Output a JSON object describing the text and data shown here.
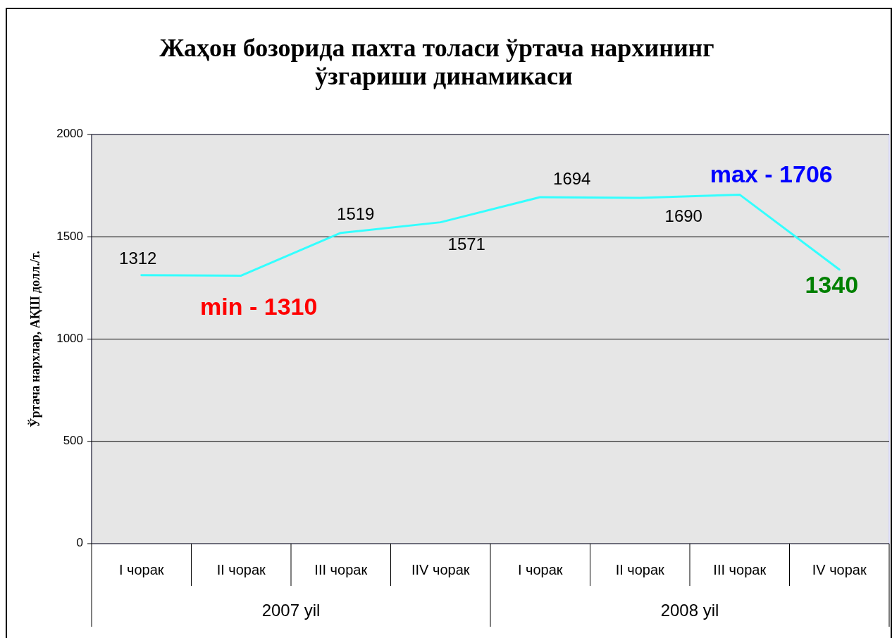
{
  "chart_data": {
    "type": "line",
    "title": "Жаҳон бозорида пахта толаси ўртача нархининг ўзгариши динамикаси",
    "ylabel": "Ўртача нархлар, АҚШ долл./т.",
    "categories": [
      "I чорак",
      "II чорак",
      "III чорак",
      "IIV чорак",
      "I чорак",
      "II чорак",
      "III чорак",
      "IV чорак"
    ],
    "series": [
      {
        "color": "#33ffff",
        "values": [
          1312,
          1310,
          1519,
          1571,
          1694,
          1690,
          1706,
          1340
        ],
        "value_labels": [
          "1312",
          null,
          "1519",
          "1571",
          "1694",
          "1690",
          null,
          "1340"
        ]
      }
    ],
    "annotations": [
      "max - 1706",
      "2007 yil",
      "2008 yil",
      {
        "text": "min - 1310",
        "x": "II чорак",
        "y": 1310
      }
    ],
    "ylim": [
      0,
      2000
    ],
    "yticks": [
      0,
      500,
      1000,
      1500,
      2000
    ],
    "grid": "y"
  }
}
